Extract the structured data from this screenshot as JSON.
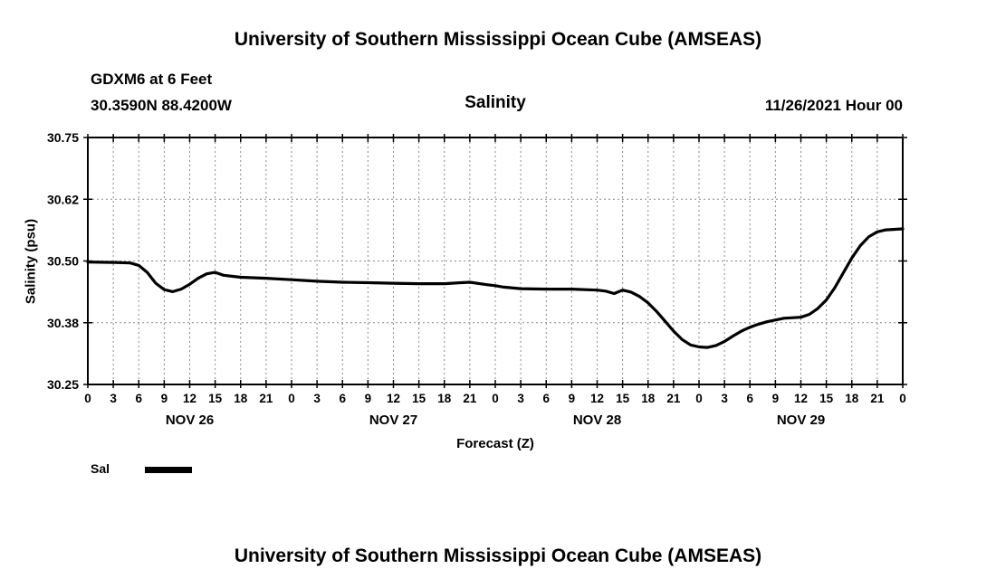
{
  "header": {
    "main_title": "University of Southern Mississippi Ocean Cube (AMSEAS)",
    "station": "GDXM6 at 6 Feet",
    "coordinates": "30.3590N  88.4200W",
    "run_time": "11/26/2021 Hour 00"
  },
  "footer": {
    "main_title": "University of Southern Mississippi Ocean Cube (AMSEAS)"
  },
  "legend": {
    "label": "Sal",
    "line_color": "#000000"
  },
  "colors": {
    "text": "#000000",
    "grid": "#8a8a8a",
    "axis": "#000000",
    "background": "#ffffff"
  },
  "chart_data": {
    "type": "line",
    "title": "Salinity",
    "xlabel": "Forecast (Z)",
    "ylabel": "Salinity (psu)",
    "grid": "dashed",
    "legend_position": "bottom-left",
    "ylim": [
      30.25,
      30.75
    ],
    "ytick_labels": [
      "30.25",
      "30.38",
      "30.50",
      "30.62",
      "30.75"
    ],
    "ytick_values": [
      30.25,
      30.375,
      30.5,
      30.625,
      30.75
    ],
    "xlim_hours": [
      0,
      96
    ],
    "xtick_interval_hours": 3,
    "xtick_labels": [
      "0",
      "3",
      "6",
      "9",
      "12",
      "15",
      "18",
      "21",
      "0",
      "3",
      "6",
      "9",
      "12",
      "15",
      "18",
      "21",
      "0",
      "3",
      "6",
      "9",
      "12",
      "15",
      "18",
      "21",
      "0",
      "3",
      "6",
      "9",
      "12",
      "15",
      "18",
      "21",
      "0"
    ],
    "day_labels": [
      "NOV 26",
      "NOV 27",
      "NOV 28",
      "NOV 29"
    ],
    "series": [
      {
        "name": "Sal",
        "color": "#000000",
        "x_hours": [
          0,
          3,
          5,
          6,
          7,
          8,
          9,
          10,
          11,
          12,
          13,
          14,
          15,
          16,
          18,
          21,
          24,
          27,
          30,
          33,
          36,
          39,
          42,
          44,
          45,
          47,
          48,
          49,
          51,
          54,
          57,
          60,
          61,
          62,
          63,
          64,
          65,
          66,
          67,
          68,
          69,
          70,
          71,
          72,
          73,
          74,
          75,
          76,
          77,
          78,
          79,
          80,
          82,
          84,
          85,
          86,
          87,
          88,
          89,
          90,
          91,
          92,
          93,
          94,
          96
        ],
        "values": [
          30.498,
          30.497,
          30.496,
          30.491,
          30.477,
          30.455,
          30.442,
          30.438,
          30.443,
          30.453,
          30.465,
          30.474,
          30.477,
          30.471,
          30.467,
          30.465,
          30.462,
          30.459,
          30.457,
          30.456,
          30.455,
          30.454,
          30.454,
          30.456,
          30.457,
          30.452,
          30.45,
          30.447,
          30.444,
          30.443,
          30.443,
          30.441,
          30.439,
          30.434,
          30.441,
          30.437,
          30.428,
          30.415,
          30.398,
          30.378,
          30.358,
          30.341,
          30.33,
          30.326,
          30.325,
          30.329,
          30.337,
          30.348,
          30.358,
          30.366,
          30.372,
          30.377,
          30.384,
          30.386,
          30.392,
          30.404,
          30.421,
          30.446,
          30.476,
          30.506,
          30.531,
          30.549,
          30.559,
          30.563,
          30.565
        ]
      }
    ]
  }
}
